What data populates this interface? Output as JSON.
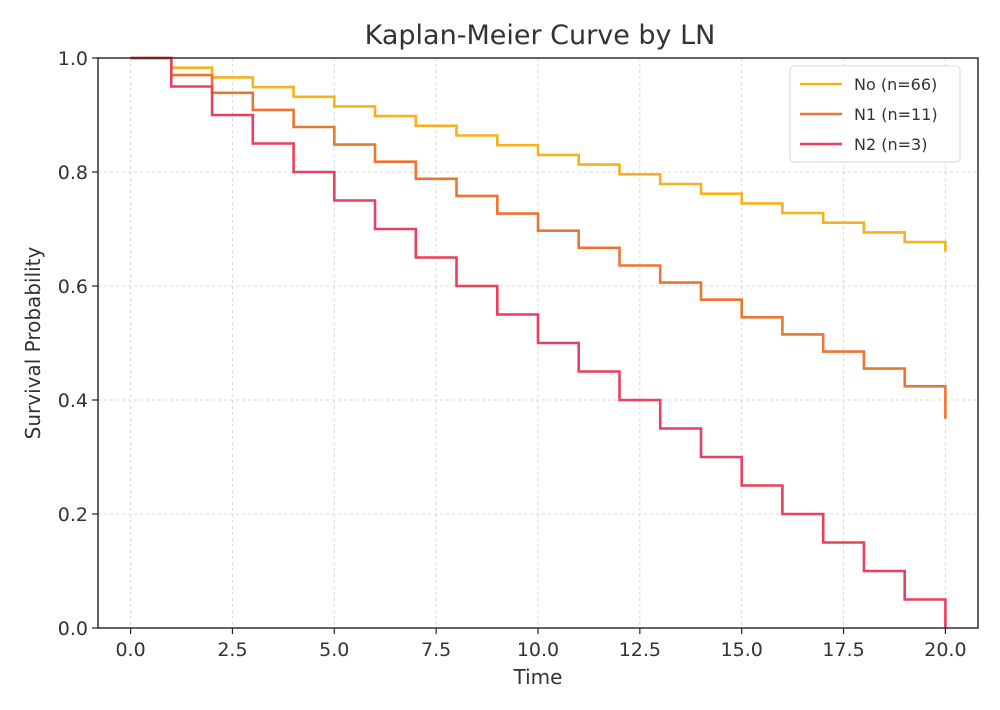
{
  "chart_data": {
    "type": "line",
    "subtype": "step",
    "title": "Kaplan-Meier Curve by LN",
    "xlabel": "Time",
    "ylabel": "Survival Probability",
    "xlim": [
      -0.8,
      20.8
    ],
    "ylim": [
      0.0,
      1.0
    ],
    "xticks": [
      0,
      2.5,
      5,
      7.5,
      10,
      12.5,
      15,
      17.5,
      20
    ],
    "xtick_labels": [
      "0.0",
      "2.5",
      "5.0",
      "7.5",
      "10.0",
      "12.5",
      "15.0",
      "17.5",
      "20.0"
    ],
    "yticks": [
      0,
      0.2,
      0.4,
      0.6,
      0.8,
      1.0
    ],
    "ytick_labels": [
      "0.0",
      "0.2",
      "0.4",
      "0.6",
      "0.8",
      "1.0"
    ],
    "grid": true,
    "legend_position": "top-right",
    "x": [
      0,
      1,
      2,
      3,
      4,
      5,
      6,
      7,
      8,
      9,
      10,
      11,
      12,
      13,
      14,
      15,
      16,
      17,
      18,
      19,
      20
    ],
    "series": [
      {
        "name": "No (n=66)",
        "color": "#f5b21b",
        "values": [
          1.0,
          0.983,
          0.966,
          0.949,
          0.932,
          0.915,
          0.898,
          0.881,
          0.864,
          0.847,
          0.83,
          0.813,
          0.796,
          0.779,
          0.762,
          0.745,
          0.728,
          0.711,
          0.694,
          0.677,
          0.66
        ]
      },
      {
        "name": "N1 (n=11)",
        "color": "#ee7530",
        "values": [
          1.0,
          0.97,
          0.939,
          0.909,
          0.879,
          0.848,
          0.818,
          0.788,
          0.758,
          0.727,
          0.697,
          0.667,
          0.636,
          0.606,
          0.576,
          0.545,
          0.515,
          0.485,
          0.455,
          0.424,
          0.367
        ]
      },
      {
        "name": "N2 (n=3)",
        "color": "#ea3f5f",
        "values": [
          1.0,
          0.95,
          0.9,
          0.85,
          0.8,
          0.75,
          0.7,
          0.65,
          0.6,
          0.55,
          0.5,
          0.45,
          0.4,
          0.35,
          0.3,
          0.25,
          0.2,
          0.15,
          0.1,
          0.05,
          0.0
        ]
      }
    ]
  }
}
